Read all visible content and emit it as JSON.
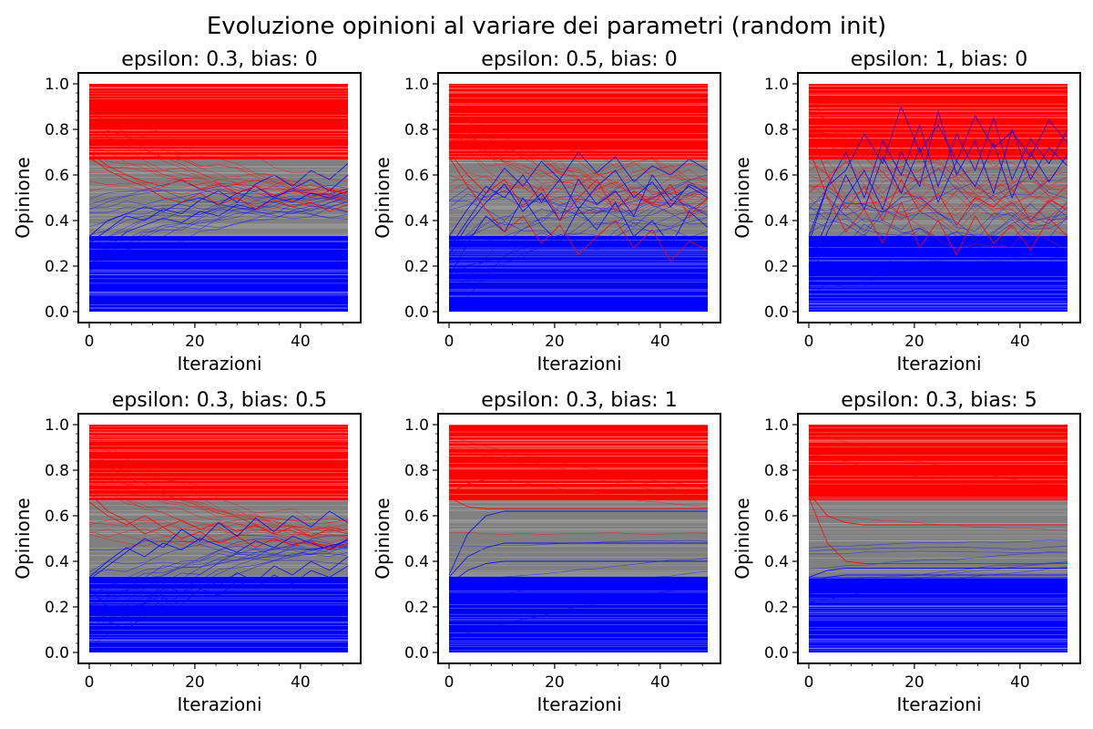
{
  "figure": {
    "title": "Evoluzione opinioni al variare dei parametri (random init)"
  },
  "colors": {
    "low_group": "#0000ff",
    "mid_group": "#808080",
    "high_group": "#ff0000",
    "frame": "#000000"
  },
  "chart_data": [
    {
      "type": "line",
      "title": "epsilon: 0.3, bias: 0",
      "xlabel": "Iterazioni",
      "ylabel": "Opinione",
      "xlim": [
        0,
        49
      ],
      "ylim": [
        0,
        1
      ],
      "xticks": [
        "0",
        "20",
        "40"
      ],
      "xtick_values": [
        0,
        20,
        40
      ],
      "yticks": [
        "0.0",
        "0.2",
        "0.4",
        "0.6",
        "0.8",
        "1.0"
      ],
      "ytick_values": [
        0,
        0.2,
        0.4,
        0.6,
        0.8,
        1.0
      ],
      "bands": [
        {
          "group": "low",
          "color": "#0000ff",
          "range": [
            0,
            0.333
          ]
        },
        {
          "group": "mid",
          "color": "#808080",
          "range": [
            0.333,
            0.667
          ]
        },
        {
          "group": "high",
          "color": "#ff0000",
          "range": [
            0.667,
            1.0
          ]
        }
      ],
      "series": [
        {
          "color": "#0000ff",
          "values": [
            0.33,
            0.4,
            0.43,
            0.46,
            0.44,
            0.48,
            0.5,
            0.47,
            0.52,
            0.55,
            0.5,
            0.54,
            0.58,
            0.53,
            0.6
          ]
        },
        {
          "color": "#0000ff",
          "values": [
            0.3,
            0.36,
            0.42,
            0.4,
            0.45,
            0.43,
            0.49,
            0.53,
            0.48,
            0.56,
            0.6,
            0.55,
            0.62,
            0.58,
            0.65
          ]
        },
        {
          "color": "#0000ff",
          "values": [
            0.2,
            0.28,
            0.35,
            0.38,
            0.41,
            0.39,
            0.44,
            0.42,
            0.47,
            0.45,
            0.5,
            0.48,
            0.52,
            0.5,
            0.53
          ]
        },
        {
          "color": "#ff0000",
          "values": [
            0.7,
            0.64,
            0.6,
            0.57,
            0.55,
            0.58,
            0.54,
            0.56,
            0.52,
            0.55,
            0.51,
            0.54,
            0.5,
            0.53,
            0.52
          ]
        },
        {
          "color": "#ff0000",
          "values": [
            0.68,
            0.62,
            0.58,
            0.55,
            0.5,
            0.48,
            0.52,
            0.47,
            0.5,
            0.45,
            0.49,
            0.46,
            0.48,
            0.44,
            0.47
          ]
        },
        {
          "color": "#808080",
          "values": [
            0.6,
            0.58,
            0.56,
            0.55,
            0.57,
            0.56,
            0.58,
            0.57,
            0.59,
            0.58,
            0.6,
            0.59,
            0.61,
            0.6,
            0.62
          ]
        }
      ]
    },
    {
      "type": "line",
      "title": "epsilon: 0.5, bias: 0",
      "xlabel": "Iterazioni",
      "ylabel": "Opinione",
      "xlim": [
        0,
        49
      ],
      "ylim": [
        0,
        1
      ],
      "xticks": [
        "0",
        "20",
        "40"
      ],
      "xtick_values": [
        0,
        20,
        40
      ],
      "yticks": [
        "0.0",
        "0.2",
        "0.4",
        "0.6",
        "0.8",
        "1.0"
      ],
      "ytick_values": [
        0,
        0.2,
        0.4,
        0.6,
        0.8,
        1.0
      ],
      "bands": [
        {
          "group": "low",
          "color": "#0000ff",
          "range": [
            0,
            0.333
          ]
        },
        {
          "group": "mid",
          "color": "#808080",
          "range": [
            0.333,
            0.667
          ]
        },
        {
          "group": "high",
          "color": "#ff0000",
          "range": [
            0.667,
            1.0
          ]
        }
      ],
      "series": [
        {
          "color": "#0000ff",
          "values": [
            0.33,
            0.45,
            0.55,
            0.5,
            0.6,
            0.48,
            0.58,
            0.45,
            0.55,
            0.62,
            0.5,
            0.57,
            0.46,
            0.56,
            0.52
          ]
        },
        {
          "color": "#0000ff",
          "values": [
            0.25,
            0.38,
            0.48,
            0.56,
            0.44,
            0.52,
            0.4,
            0.58,
            0.47,
            0.53,
            0.42,
            0.6,
            0.49,
            0.55,
            0.5
          ]
        },
        {
          "color": "#0000ff",
          "values": [
            0.15,
            0.3,
            0.42,
            0.35,
            0.5,
            0.38,
            0.3,
            0.45,
            0.36,
            0.48,
            0.33,
            0.4,
            0.29,
            0.44,
            0.37
          ]
        },
        {
          "color": "#ff0000",
          "values": [
            0.7,
            0.6,
            0.52,
            0.58,
            0.46,
            0.55,
            0.4,
            0.5,
            0.58,
            0.44,
            0.53,
            0.47,
            0.56,
            0.42,
            0.5
          ]
        },
        {
          "color": "#ff0000",
          "values": [
            0.68,
            0.55,
            0.45,
            0.35,
            0.42,
            0.3,
            0.38,
            0.25,
            0.33,
            0.4,
            0.28,
            0.36,
            0.22,
            0.31,
            0.27
          ]
        },
        {
          "color": "#0000ff",
          "values": [
            0.28,
            0.4,
            0.52,
            0.63,
            0.55,
            0.66,
            0.58,
            0.7,
            0.61,
            0.68,
            0.57,
            0.64,
            0.6,
            0.67,
            0.62
          ]
        }
      ]
    },
    {
      "type": "line",
      "title": "epsilon: 1, bias: 0",
      "xlabel": "Iterazioni",
      "ylabel": "Opinione",
      "xlim": [
        0,
        49
      ],
      "ylim": [
        0,
        1
      ],
      "xticks": [
        "0",
        "20",
        "40"
      ],
      "xtick_values": [
        0,
        20,
        40
      ],
      "yticks": [
        "0.0",
        "0.2",
        "0.4",
        "0.6",
        "0.8",
        "1.0"
      ],
      "ytick_values": [
        0,
        0.2,
        0.4,
        0.6,
        0.8,
        1.0
      ],
      "bands": [
        {
          "group": "low",
          "color": "#0000ff",
          "range": [
            0,
            0.333
          ]
        },
        {
          "group": "mid",
          "color": "#808080",
          "range": [
            0.333,
            0.667
          ]
        },
        {
          "group": "high",
          "color": "#ff0000",
          "range": [
            0.667,
            1.0
          ]
        }
      ],
      "series": [
        {
          "color": "#0000ff",
          "values": [
            0.33,
            0.55,
            0.7,
            0.5,
            0.75,
            0.6,
            0.82,
            0.55,
            0.78,
            0.62,
            0.85,
            0.58,
            0.76,
            0.65,
            0.8
          ]
        },
        {
          "color": "#0000ff",
          "values": [
            0.2,
            0.4,
            0.6,
            0.45,
            0.68,
            0.52,
            0.72,
            0.48,
            0.66,
            0.55,
            0.74,
            0.5,
            0.7,
            0.57,
            0.69
          ]
        },
        {
          "color": "#0000ff",
          "values": [
            0.1,
            0.35,
            0.5,
            0.62,
            0.45,
            0.7,
            0.55,
            0.88,
            0.6,
            0.75,
            0.52,
            0.8,
            0.58,
            0.72,
            0.64
          ]
        },
        {
          "color": "#ff0000",
          "values": [
            0.72,
            0.5,
            0.35,
            0.45,
            0.3,
            0.48,
            0.28,
            0.4,
            0.25,
            0.42,
            0.3,
            0.38,
            0.27,
            0.41,
            0.33
          ]
        },
        {
          "color": "#ff0000",
          "values": [
            0.8,
            0.6,
            0.45,
            0.55,
            0.4,
            0.58,
            0.44,
            0.52,
            0.38,
            0.5,
            0.46,
            0.54,
            0.4,
            0.49,
            0.45
          ]
        },
        {
          "color": "#0000ff",
          "values": [
            0.3,
            0.55,
            0.62,
            0.78,
            0.65,
            0.9,
            0.7,
            0.82,
            0.66,
            0.86,
            0.72,
            0.79,
            0.68,
            0.84,
            0.74
          ]
        }
      ]
    },
    {
      "type": "line",
      "title": "epsilon: 0.3, bias: 0.5",
      "xlabel": "Iterazioni",
      "ylabel": "Opinione",
      "xlim": [
        0,
        49
      ],
      "ylim": [
        0,
        1
      ],
      "xticks": [
        "0",
        "20",
        "40"
      ],
      "xtick_values": [
        0,
        20,
        40
      ],
      "yticks": [
        "0.0",
        "0.2",
        "0.4",
        "0.6",
        "0.8",
        "1.0"
      ],
      "ytick_values": [
        0,
        0.2,
        0.4,
        0.6,
        0.8,
        1.0
      ],
      "bands": [
        {
          "group": "low",
          "color": "#0000ff",
          "range": [
            0,
            0.333
          ]
        },
        {
          "group": "mid",
          "color": "#808080",
          "range": [
            0.333,
            0.667
          ]
        },
        {
          "group": "high",
          "color": "#ff0000",
          "range": [
            0.667,
            1.0
          ]
        }
      ],
      "series": [
        {
          "color": "#0000ff",
          "values": [
            0.33,
            0.4,
            0.46,
            0.42,
            0.48,
            0.45,
            0.5,
            0.47,
            0.44,
            0.49,
            0.46,
            0.51,
            0.48,
            0.45,
            0.5
          ]
        },
        {
          "color": "#0000ff",
          "values": [
            0.28,
            0.2,
            0.15,
            0.22,
            0.3,
            0.26,
            0.33,
            0.29,
            0.35,
            0.31,
            0.38,
            0.34,
            0.4,
            0.36,
            0.42
          ]
        },
        {
          "color": "#0000ff",
          "values": [
            0.2,
            0.14,
            0.1,
            0.16,
            0.24,
            0.21,
            0.28,
            0.25,
            0.31,
            0.28,
            0.34,
            0.3,
            0.36,
            0.33,
            0.38
          ]
        },
        {
          "color": "#ff0000",
          "values": [
            0.7,
            0.62,
            0.58,
            0.52,
            0.55,
            0.5,
            0.53,
            0.48,
            0.51,
            0.46,
            0.5,
            0.47,
            0.49,
            0.45,
            0.48
          ]
        },
        {
          "color": "#ff0000",
          "values": [
            0.66,
            0.6,
            0.56,
            0.6,
            0.55,
            0.58,
            0.54,
            0.57,
            0.53,
            0.56,
            0.52,
            0.55,
            0.51,
            0.54,
            0.52
          ]
        },
        {
          "color": "#0000ff",
          "values": [
            0.32,
            0.38,
            0.44,
            0.5,
            0.46,
            0.54,
            0.49,
            0.57,
            0.51,
            0.59,
            0.53,
            0.6,
            0.55,
            0.62,
            0.57
          ]
        }
      ]
    },
    {
      "type": "line",
      "title": "epsilon: 0.3, bias: 1",
      "xlabel": "Iterazioni",
      "ylabel": "Opinione",
      "xlim": [
        0,
        49
      ],
      "ylim": [
        0,
        1
      ],
      "xticks": [
        "0",
        "20",
        "40"
      ],
      "xtick_values": [
        0,
        20,
        40
      ],
      "yticks": [
        "0.0",
        "0.2",
        "0.4",
        "0.6",
        "0.8",
        "1.0"
      ],
      "ytick_values": [
        0,
        0.2,
        0.4,
        0.6,
        0.8,
        1.0
      ],
      "bands": [
        {
          "group": "low",
          "color": "#0000ff",
          "range": [
            0,
            0.333
          ]
        },
        {
          "group": "mid",
          "color": "#808080",
          "range": [
            0.333,
            0.667
          ]
        },
        {
          "group": "high",
          "color": "#ff0000",
          "range": [
            0.667,
            1.0
          ]
        }
      ],
      "series": [
        {
          "color": "#0000ff",
          "values": [
            0.33,
            0.42,
            0.46,
            0.48,
            0.48,
            0.48,
            0.48,
            0.48,
            0.48,
            0.48,
            0.48,
            0.48,
            0.48,
            0.48,
            0.48
          ]
        },
        {
          "color": "#0000ff",
          "values": [
            0.34,
            0.52,
            0.6,
            0.62,
            0.62,
            0.62,
            0.62,
            0.62,
            0.62,
            0.62,
            0.62,
            0.62,
            0.62,
            0.62,
            0.62
          ]
        },
        {
          "color": "#0000ff",
          "values": [
            0.3,
            0.36,
            0.39,
            0.4,
            0.4,
            0.4,
            0.4,
            0.4,
            0.4,
            0.4,
            0.4,
            0.4,
            0.4,
            0.4,
            0.4
          ]
        },
        {
          "color": "#ff0000",
          "values": [
            0.68,
            0.64,
            0.63,
            0.63,
            0.63,
            0.63,
            0.63,
            0.63,
            0.63,
            0.63,
            0.63,
            0.63,
            0.63,
            0.63,
            0.63
          ]
        },
        {
          "color": "#ff0000",
          "values": [
            0.7,
            0.74,
            0.76,
            0.77,
            0.77,
            0.77,
            0.77,
            0.77,
            0.77,
            0.77,
            0.77,
            0.77,
            0.77,
            0.77,
            0.77
          ]
        },
        {
          "color": "#808080",
          "values": [
            0.45,
            0.45,
            0.45,
            0.45,
            0.45,
            0.45,
            0.45,
            0.45,
            0.45,
            0.45,
            0.45,
            0.45,
            0.45,
            0.45,
            0.45
          ]
        }
      ]
    },
    {
      "type": "line",
      "title": "epsilon: 0.3, bias: 5",
      "xlabel": "Iterazioni",
      "ylabel": "Opinione",
      "xlim": [
        0,
        49
      ],
      "ylim": [
        0,
        1
      ],
      "xticks": [
        "0",
        "20",
        "40"
      ],
      "xtick_values": [
        0,
        20,
        40
      ],
      "yticks": [
        "0.0",
        "0.2",
        "0.4",
        "0.6",
        "0.8",
        "1.0"
      ],
      "ytick_values": [
        0,
        0.2,
        0.4,
        0.6,
        0.8,
        1.0
      ],
      "bands": [
        {
          "group": "low",
          "color": "#0000ff",
          "range": [
            0,
            0.333
          ]
        },
        {
          "group": "mid",
          "color": "#808080",
          "range": [
            0.333,
            0.667
          ]
        },
        {
          "group": "high",
          "color": "#ff0000",
          "range": [
            0.667,
            1.0
          ]
        }
      ],
      "series": [
        {
          "color": "#ff0000",
          "values": [
            0.68,
            0.48,
            0.4,
            0.39,
            0.39,
            0.39,
            0.39,
            0.39,
            0.39,
            0.39,
            0.39,
            0.39,
            0.39,
            0.39,
            0.39
          ]
        },
        {
          "color": "#ff0000",
          "values": [
            0.7,
            0.6,
            0.57,
            0.56,
            0.56,
            0.56,
            0.56,
            0.56,
            0.56,
            0.56,
            0.56,
            0.56,
            0.56,
            0.56,
            0.56
          ]
        },
        {
          "color": "#0000ff",
          "values": [
            0.33,
            0.36,
            0.37,
            0.37,
            0.37,
            0.37,
            0.37,
            0.37,
            0.37,
            0.37,
            0.37,
            0.37,
            0.37,
            0.37,
            0.37
          ]
        },
        {
          "color": "#0000ff",
          "values": [
            0.3,
            0.33,
            0.34,
            0.34,
            0.34,
            0.34,
            0.34,
            0.34,
            0.34,
            0.34,
            0.34,
            0.34,
            0.34,
            0.34,
            0.34
          ]
        },
        {
          "color": "#808080",
          "values": [
            0.5,
            0.5,
            0.5,
            0.5,
            0.5,
            0.5,
            0.5,
            0.5,
            0.5,
            0.5,
            0.5,
            0.5,
            0.5,
            0.5,
            0.5
          ]
        },
        {
          "color": "#ff0000",
          "values": [
            0.9,
            0.89,
            0.89,
            0.89,
            0.89,
            0.89,
            0.89,
            0.89,
            0.89,
            0.89,
            0.89,
            0.89,
            0.89,
            0.89,
            0.89
          ]
        }
      ]
    }
  ]
}
